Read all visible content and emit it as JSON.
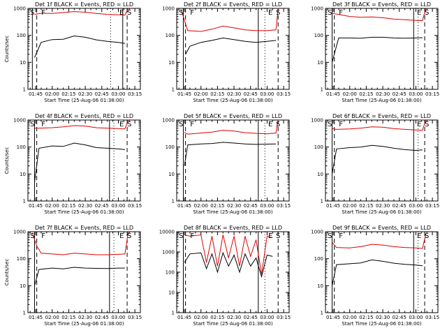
{
  "figure": {
    "background": "#ffffff",
    "events_color": "#000000",
    "lld_color": "#e00000"
  },
  "chart_data": [
    {
      "type": "line",
      "title": "Det 1f BLACK = Events, RED = LLD",
      "xlabel": "Start Time (25-Aug-06 01:38:00)",
      "ylabel": "Counts/sec",
      "yscale": "log",
      "ylim": [
        1,
        1000
      ],
      "xlim": [
        "01:38",
        "03:20"
      ],
      "xticks": [
        "01:45",
        "02:00",
        "02:15",
        "02:30",
        "02:45",
        "03:00",
        "03:15"
      ],
      "yticks": [
        "1",
        "10",
        "100",
        "1000"
      ],
      "markers": [
        {
          "label": "S",
          "time": "01:42"
        },
        {
          "label": "F",
          "time": "01:52"
        },
        {
          "label": "E",
          "time": "03:03"
        },
        {
          "label": "S",
          "time": "03:10"
        }
      ],
      "solid_lines": [
        "01:42",
        "03:04"
      ],
      "dashed_lines": [
        "01:46",
        "03:08"
      ],
      "dotted_lines": [
        "02:53"
      ],
      "series": [
        {
          "name": "Events",
          "color": "#000000",
          "x": [
            "01:44",
            "01:50",
            "02:00",
            "02:10",
            "02:20",
            "02:30",
            "02:40",
            "02:50",
            "03:00",
            "03:06"
          ],
          "values": [
            15,
            55,
            70,
            72,
            95,
            85,
            68,
            60,
            55,
            50
          ]
        },
        {
          "name": "LLD",
          "color": "#e00000",
          "x": [
            "01:44",
            "01:50",
            "02:00",
            "02:10",
            "02:20",
            "02:30",
            "02:40",
            "02:50",
            "03:00",
            "03:06",
            "03:09"
          ],
          "values": [
            600,
            660,
            650,
            700,
            760,
            720,
            650,
            600,
            580,
            560,
            1000
          ]
        }
      ]
    },
    {
      "type": "line",
      "title": "Det 2f BLACK = Events, RED = LLD",
      "xlabel": "Start Time (25-Aug-06 01:38:00)",
      "ylabel": "",
      "yscale": "log",
      "ylim": [
        1,
        1000
      ],
      "xlim": [
        "01:38",
        "03:20"
      ],
      "xticks": [
        "01:45",
        "02:00",
        "02:15",
        "02:30",
        "02:45",
        "03:00",
        "03:15"
      ],
      "yticks": [
        "1",
        "10",
        "100",
        "1000"
      ],
      "markers": [
        {
          "label": "S",
          "time": "01:42"
        },
        {
          "label": "F",
          "time": "01:52"
        },
        {
          "label": "E",
          "time": "03:03"
        },
        {
          "label": "S",
          "time": "03:10"
        }
      ],
      "solid_lines": [
        "01:44",
        "02:52"
      ],
      "dashed_lines": [
        "01:46",
        "03:10"
      ],
      "dotted_lines": [
        "02:58"
      ],
      "series": [
        {
          "name": "Events",
          "color": "#000000",
          "x": [
            "01:46",
            "01:50",
            "02:00",
            "02:10",
            "02:20",
            "02:30",
            "02:40",
            "02:50",
            "03:00",
            "03:08"
          ],
          "values": [
            20,
            40,
            55,
            65,
            80,
            70,
            60,
            55,
            60,
            65
          ]
        },
        {
          "name": "LLD",
          "color": "#e00000",
          "x": [
            "01:42",
            "01:48",
            "02:00",
            "02:10",
            "02:20",
            "02:30",
            "02:40",
            "02:50",
            "03:00",
            "03:08",
            "03:10"
          ],
          "values": [
            900,
            150,
            140,
            170,
            220,
            190,
            160,
            150,
            150,
            160,
            1000
          ]
        }
      ]
    },
    {
      "type": "line",
      "title": "Det 3f BLACK = Events, RED = LLD",
      "xlabel": "Start Time (25-Aug-06 01:38:00)",
      "ylabel": "",
      "yscale": "log",
      "ylim": [
        1,
        1000
      ],
      "xlim": [
        "01:38",
        "03:20"
      ],
      "xticks": [
        "01:45",
        "02:00",
        "02:15",
        "02:30",
        "02:45",
        "03:00",
        "03:15"
      ],
      "yticks": [
        "1",
        "10",
        "100",
        "1000"
      ],
      "markers": [
        {
          "label": "S",
          "time": "01:42"
        },
        {
          "label": "F",
          "time": "01:52"
        },
        {
          "label": "E",
          "time": "03:03"
        },
        {
          "label": "S",
          "time": "03:10"
        }
      ],
      "solid_lines": [
        "01:44",
        "02:58"
      ],
      "dashed_lines": [
        "01:46",
        "03:08"
      ],
      "dotted_lines": [
        "03:02"
      ],
      "series": [
        {
          "name": "Events",
          "color": "#000000",
          "x": [
            "01:44",
            "01:50",
            "02:00",
            "02:10",
            "02:20",
            "02:30",
            "02:40",
            "02:50",
            "03:00",
            "03:06"
          ],
          "values": [
            10,
            80,
            80,
            78,
            85,
            85,
            80,
            78,
            80,
            82
          ]
        },
        {
          "name": "LLD",
          "color": "#e00000",
          "x": [
            "01:44",
            "01:50",
            "02:00",
            "02:10",
            "02:20",
            "02:30",
            "02:40",
            "02:50",
            "03:00",
            "03:06",
            "03:09"
          ],
          "values": [
            650,
            600,
            500,
            470,
            480,
            450,
            400,
            380,
            360,
            350,
            1000
          ]
        }
      ]
    },
    {
      "type": "line",
      "title": "Det 4f BLACK = Events, RED = LLD",
      "xlabel": "Start Time (25-Aug-06 01:38:00)",
      "ylabel": "Counts/sec",
      "yscale": "log",
      "ylim": [
        1,
        1000
      ],
      "xlim": [
        "01:38",
        "03:20"
      ],
      "xticks": [
        "01:45",
        "02:00",
        "02:15",
        "02:30",
        "02:45",
        "03:00",
        "03:15"
      ],
      "yticks": [
        "1",
        "10",
        "100",
        "1000"
      ],
      "markers": [
        {
          "label": "S",
          "time": "01:42"
        },
        {
          "label": "F",
          "time": "01:52"
        },
        {
          "label": "E",
          "time": "03:03"
        },
        {
          "label": "S",
          "time": "03:10"
        }
      ],
      "solid_lines": [
        "01:44",
        "02:52"
      ],
      "dashed_lines": [
        "01:46",
        "03:08"
      ],
      "dotted_lines": [
        "02:56"
      ],
      "series": [
        {
          "name": "Events",
          "color": "#000000",
          "x": [
            "01:44",
            "01:48",
            "02:00",
            "02:10",
            "02:20",
            "02:30",
            "02:40",
            "02:50",
            "03:00",
            "03:06"
          ],
          "values": [
            5,
            90,
            110,
            105,
            140,
            120,
            95,
            90,
            85,
            80
          ]
        },
        {
          "name": "LLD",
          "color": "#e00000",
          "x": [
            "01:44",
            "01:48",
            "02:00",
            "02:10",
            "02:20",
            "02:30",
            "02:40",
            "02:50",
            "03:00",
            "03:06",
            "03:09"
          ],
          "values": [
            500,
            500,
            520,
            560,
            620,
            600,
            520,
            500,
            480,
            470,
            1000
          ]
        }
      ]
    },
    {
      "type": "line",
      "title": "Det 5f BLACK = Events, RED = LLD",
      "xlabel": "Start Time (25-Aug-06 01:38:00)",
      "ylabel": "",
      "yscale": "log",
      "ylim": [
        1,
        1000
      ],
      "xlim": [
        "01:38",
        "03:20"
      ],
      "xticks": [
        "01:45",
        "02:00",
        "02:15",
        "02:30",
        "02:45",
        "03:00",
        "03:15"
      ],
      "yticks": [
        "1",
        "10",
        "100",
        "1000"
      ],
      "markers": [
        {
          "label": "S",
          "time": "01:42"
        },
        {
          "label": "F",
          "time": "01:52"
        },
        {
          "label": "E",
          "time": "03:03"
        },
        {
          "label": "S",
          "time": "03:10"
        }
      ],
      "solid_lines": [
        "01:44",
        "02:52"
      ],
      "dashed_lines": [
        "01:46",
        "03:10"
      ],
      "dotted_lines": [
        "02:58"
      ],
      "series": [
        {
          "name": "Events",
          "color": "#000000",
          "x": [
            "01:45",
            "01:48",
            "02:00",
            "02:10",
            "02:20",
            "02:30",
            "02:40",
            "02:50",
            "03:00",
            "03:08"
          ],
          "values": [
            20,
            120,
            130,
            135,
            150,
            140,
            130,
            125,
            128,
            130
          ]
        },
        {
          "name": "LLD",
          "color": "#e00000",
          "x": [
            "01:45",
            "01:48",
            "02:00",
            "02:10",
            "02:20",
            "02:30",
            "02:40",
            "02:50",
            "03:00",
            "03:08",
            "03:10"
          ],
          "values": [
            350,
            300,
            330,
            360,
            420,
            390,
            340,
            320,
            310,
            330,
            1000
          ]
        }
      ]
    },
    {
      "type": "line",
      "title": "Det 6f BLACK = Events, RED = LLD",
      "xlabel": "Start Time (25-Aug-06 01:38:00)",
      "ylabel": "",
      "yscale": "log",
      "ylim": [
        1,
        1000
      ],
      "xlim": [
        "01:38",
        "03:20"
      ],
      "xticks": [
        "01:45",
        "02:00",
        "02:15",
        "02:30",
        "02:45",
        "03:00",
        "03:15"
      ],
      "yticks": [
        "1",
        "10",
        "100",
        "1000"
      ],
      "markers": [
        {
          "label": "S",
          "time": "01:42"
        },
        {
          "label": "F",
          "time": "01:52"
        },
        {
          "label": "E",
          "time": "03:03"
        },
        {
          "label": "S",
          "time": "03:10"
        }
      ],
      "solid_lines": [
        "01:44",
        "02:58"
      ],
      "dashed_lines": [
        "01:46",
        "03:08"
      ],
      "dotted_lines": [
        "03:02"
      ],
      "series": [
        {
          "name": "Events",
          "color": "#000000",
          "x": [
            "01:44",
            "01:48",
            "02:00",
            "02:10",
            "02:20",
            "02:30",
            "02:40",
            "02:50",
            "03:00",
            "03:06"
          ],
          "values": [
            10,
            85,
            95,
            100,
            115,
            105,
            90,
            80,
            75,
            78
          ]
        },
        {
          "name": "LLD",
          "color": "#e00000",
          "x": [
            "01:44",
            "01:48",
            "02:00",
            "02:10",
            "02:20",
            "02:30",
            "02:40",
            "02:50",
            "03:00",
            "03:06",
            "03:09"
          ],
          "values": [
            480,
            450,
            470,
            500,
            560,
            540,
            480,
            450,
            430,
            420,
            1000
          ]
        }
      ]
    },
    {
      "type": "line",
      "title": "Det 7f BLACK = Events, RED = LLD",
      "xlabel": "Start Time (25-Aug-06 01:38:00)",
      "ylabel": "Counts/sec",
      "yscale": "log",
      "ylim": [
        1,
        1000
      ],
      "xlim": [
        "01:38",
        "03:20"
      ],
      "xticks": [
        "01:45",
        "02:00",
        "02:15",
        "02:30",
        "02:45",
        "03:00",
        "03:15"
      ],
      "yticks": [
        "1",
        "10",
        "100",
        "1000"
      ],
      "markers": [
        {
          "label": "S",
          "time": "01:42"
        },
        {
          "label": "F",
          "time": "01:52"
        },
        {
          "label": "E",
          "time": "03:03"
        },
        {
          "label": "S",
          "time": "03:10"
        }
      ],
      "solid_lines": [
        "01:44",
        "02:52"
      ],
      "dashed_lines": [
        "01:46",
        "03:08"
      ],
      "dotted_lines": [
        "02:56"
      ],
      "series": [
        {
          "name": "Events",
          "color": "#000000",
          "x": [
            "01:44",
            "01:48",
            "02:00",
            "02:10",
            "02:20",
            "02:30",
            "02:40",
            "02:50",
            "03:00",
            "03:06"
          ],
          "values": [
            10,
            40,
            45,
            42,
            48,
            45,
            44,
            43,
            45,
            45
          ]
        },
        {
          "name": "LLD",
          "color": "#e00000",
          "x": [
            "01:42",
            "01:46",
            "01:50",
            "02:00",
            "02:10",
            "02:20",
            "02:30",
            "02:40",
            "02:50",
            "03:00",
            "03:06",
            "03:09"
          ],
          "values": [
            900,
            300,
            160,
            150,
            140,
            160,
            150,
            140,
            140,
            145,
            150,
            1000
          ]
        }
      ]
    },
    {
      "type": "line",
      "title": "Det 8f BLACK = Events, RED = LLD",
      "xlabel": "Start Time (25-Aug-06 01:38:00)",
      "ylabel": "",
      "yscale": "log",
      "ylim": [
        1,
        10000
      ],
      "xlim": [
        "01:38",
        "03:20"
      ],
      "xticks": [
        "01:45",
        "02:00",
        "02:15",
        "02:30",
        "02:45",
        "03:00",
        "03:15"
      ],
      "yticks": [
        "1",
        "10",
        "100",
        "1000",
        "10000"
      ],
      "markers": [
        {
          "label": "S",
          "time": "01:42"
        },
        {
          "label": "F",
          "time": "01:52"
        },
        {
          "label": "E",
          "time": "03:03"
        },
        {
          "label": "S",
          "time": "03:10"
        }
      ],
      "solid_lines": [
        "01:44",
        "02:52"
      ],
      "dashed_lines": [
        "01:46",
        "03:10"
      ],
      "dotted_lines": [
        "02:58"
      ],
      "series": [
        {
          "name": "Events",
          "color": "#000000",
          "x": [
            "01:45",
            "01:50",
            "02:00",
            "02:05",
            "02:10",
            "02:15",
            "02:20",
            "02:25",
            "02:30",
            "02:35",
            "02:40",
            "02:45",
            "02:50",
            "02:55",
            "03:00",
            "03:05"
          ],
          "values": [
            300,
            800,
            900,
            150,
            800,
            100,
            900,
            200,
            700,
            100,
            800,
            200,
            500,
            60,
            700,
            600
          ]
        },
        {
          "name": "LLD",
          "color": "#e00000",
          "x": [
            "01:45",
            "01:50",
            "02:00",
            "02:05",
            "02:10",
            "02:15",
            "02:20",
            "02:25",
            "02:30",
            "02:35",
            "02:40",
            "02:45",
            "02:50",
            "02:55",
            "03:00",
            "03:05"
          ],
          "values": [
            7000,
            6000,
            7000,
            300,
            6000,
            200,
            7000,
            500,
            6000,
            200,
            6000,
            600,
            4000,
            80,
            6000,
            5000
          ]
        }
      ]
    },
    {
      "type": "line",
      "title": "Det 9f BLACK = Events, RED = LLD",
      "xlabel": "Start Time (25-Aug-06 01:38:00)",
      "ylabel": "",
      "yscale": "log",
      "ylim": [
        1,
        1000
      ],
      "xlim": [
        "01:38",
        "03:20"
      ],
      "xticks": [
        "01:45",
        "02:00",
        "02:15",
        "02:30",
        "02:45",
        "03:00",
        "03:15"
      ],
      "yticks": [
        "1",
        "10",
        "100",
        "1000"
      ],
      "markers": [
        {
          "label": "S",
          "time": "01:42"
        },
        {
          "label": "F",
          "time": "01:52"
        },
        {
          "label": "E",
          "time": "03:03"
        },
        {
          "label": "S",
          "time": "03:10"
        }
      ],
      "solid_lines": [
        "01:44",
        "02:58"
      ],
      "dashed_lines": [
        "01:46",
        "03:08"
      ],
      "dotted_lines": [
        "03:02"
      ],
      "series": [
        {
          "name": "Events",
          "color": "#000000",
          "x": [
            "01:44",
            "01:48",
            "02:00",
            "02:10",
            "02:20",
            "02:30",
            "02:40",
            "02:50",
            "03:00",
            "03:06"
          ],
          "values": [
            10,
            60,
            65,
            70,
            90,
            80,
            68,
            62,
            58,
            55
          ]
        },
        {
          "name": "LLD",
          "color": "#e00000",
          "x": [
            "01:44",
            "01:48",
            "02:00",
            "02:10",
            "02:20",
            "02:30",
            "02:40",
            "02:50",
            "03:00",
            "03:06",
            "03:09"
          ],
          "values": [
            400,
            260,
            250,
            280,
            340,
            320,
            280,
            260,
            250,
            240,
            800
          ]
        }
      ]
    }
  ]
}
